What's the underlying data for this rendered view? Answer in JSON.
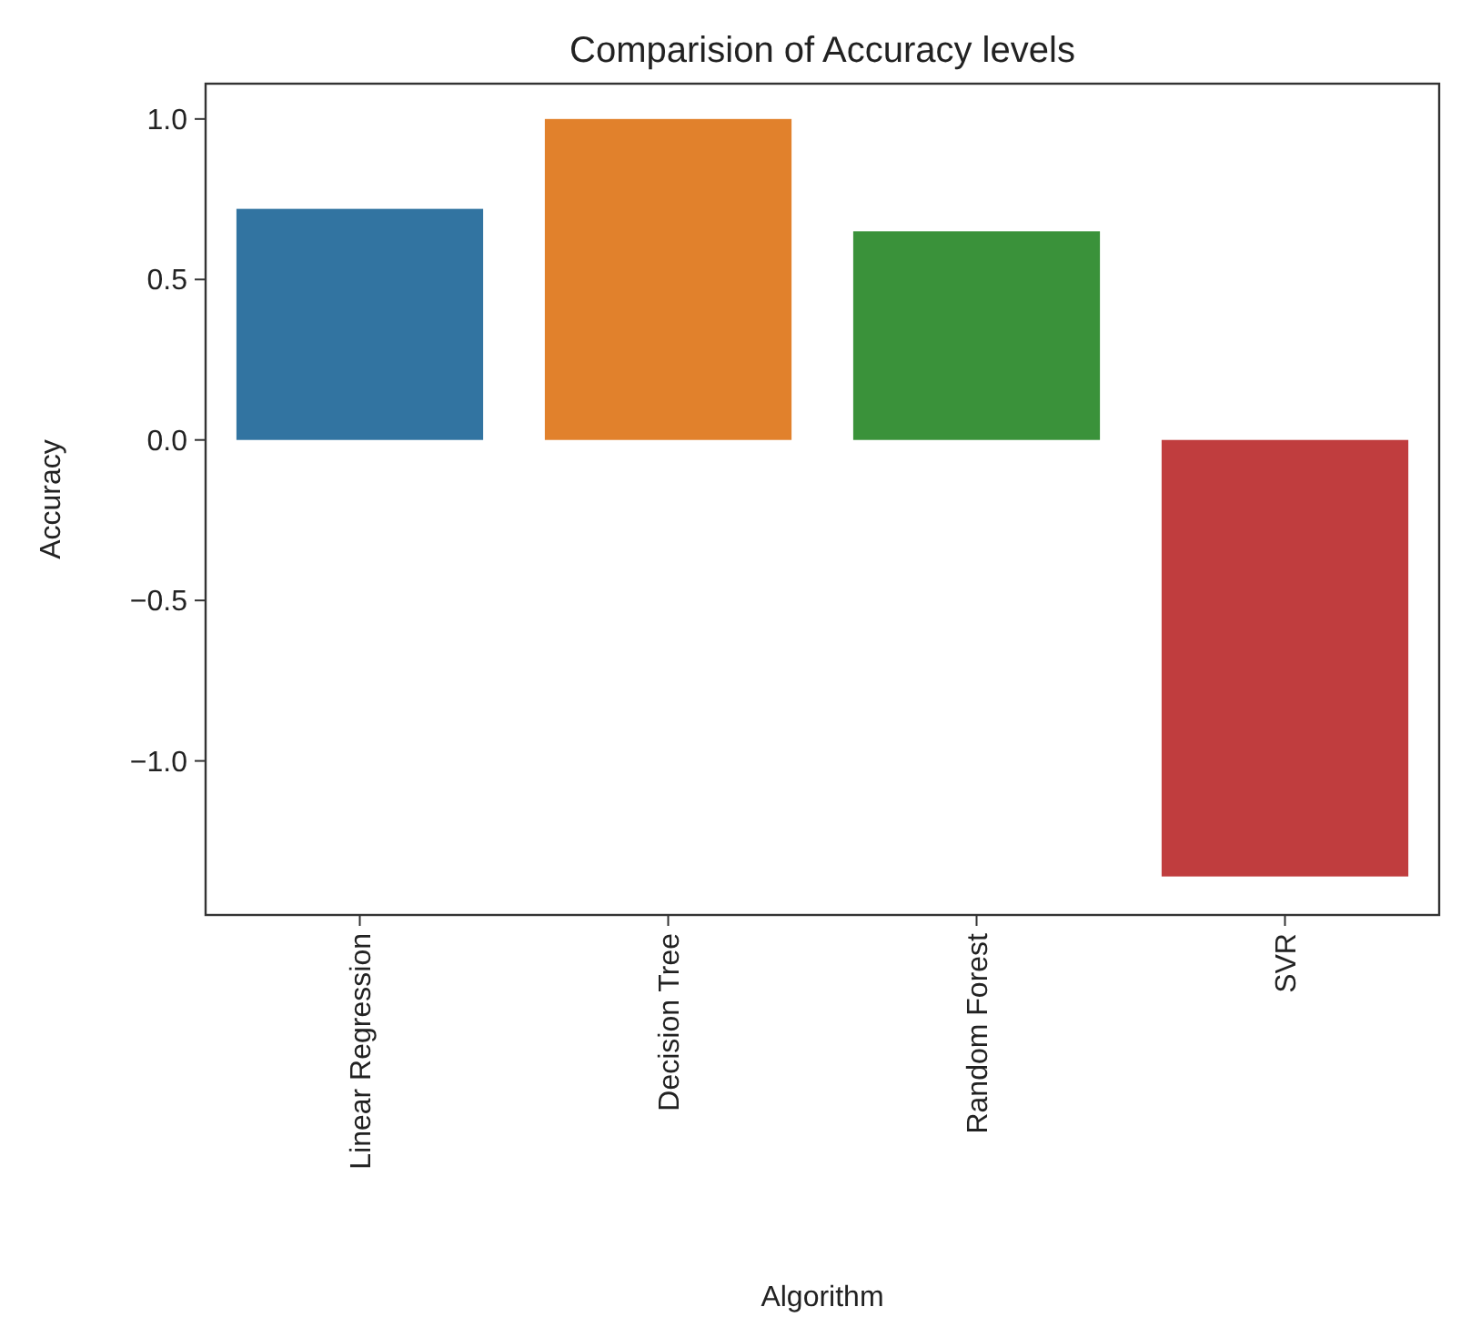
{
  "chart_data": {
    "type": "bar",
    "title": "Comparision of Accuracy levels",
    "xlabel": "Algorithm",
    "ylabel": "Accuracy",
    "categories": [
      "Linear Regression",
      "Decision Tree",
      "Random Forest",
      "SVR"
    ],
    "values": [
      0.72,
      1.0,
      0.65,
      -1.36
    ],
    "colors": [
      "#3274a1",
      "#e1812c",
      "#3a923a",
      "#c03d3e"
    ],
    "ylim": [
      -1.48,
      1.11
    ],
    "yticks": [
      {
        "value": -1.0,
        "label": "−1.0"
      },
      {
        "value": -0.5,
        "label": "−0.5"
      },
      {
        "value": 0,
        "label": "0.0"
      },
      {
        "value": 0.5,
        "label": "0.5"
      },
      {
        "value": 1.0,
        "label": "1.0"
      }
    ],
    "grid": false
  }
}
